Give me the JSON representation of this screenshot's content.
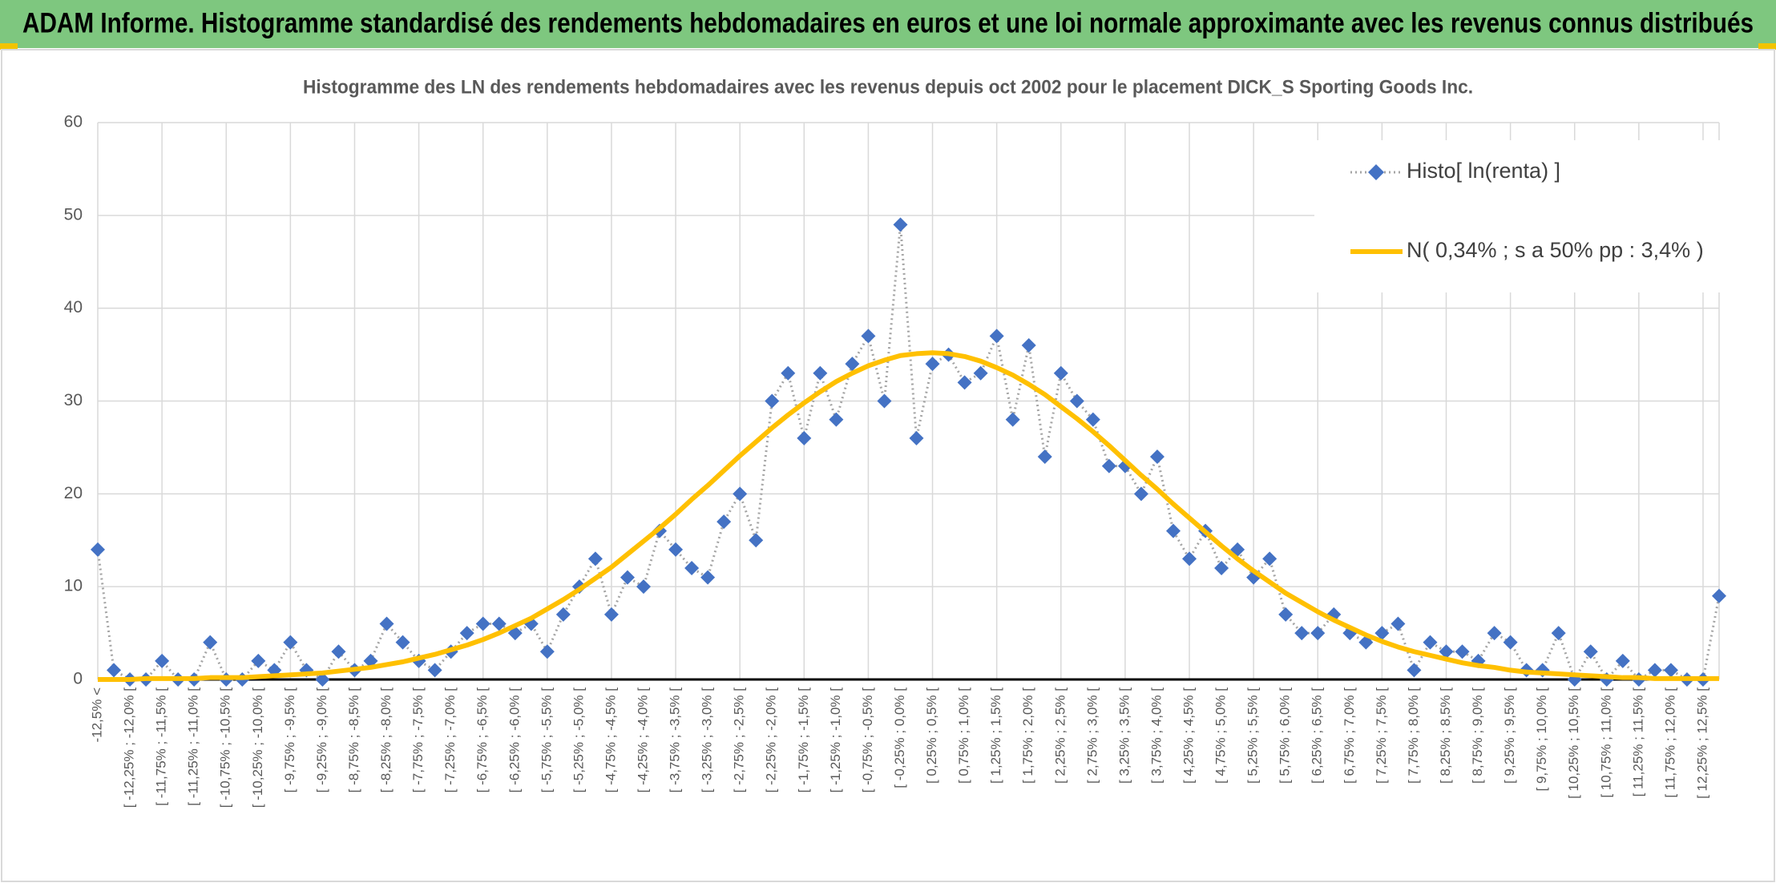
{
  "chart_data": {
    "type": "line",
    "suptitle": "ADAM Informe. Histogramme standardisé des rendements hebdomadaires en euros et une loi normale approximante avec les revenus connus distribués",
    "title": "Histogramme des LN des rendements hebdomadaires avec les revenus depuis oct 2002 pour le placement DICK_S Sporting Goods Inc.",
    "categories": [
      "-12,5% <",
      null,
      "[ -12,25% ; -12,0% [",
      null,
      "[ -11,75% ; -11,5% [",
      null,
      "[ -11,25% ; -11,0% [",
      null,
      "[ -10,75% ; -10,5% [",
      null,
      "[ -10,25% ; -10,0% [",
      null,
      "[ -9,75% ; -9,5% [",
      null,
      "[ -9,25% ; -9,0% [",
      null,
      "[ -8,75% ; -8,5% [",
      null,
      "[ -8,25% ; -8,0% [",
      null,
      "[ -7,75% ; -7,5% [",
      null,
      "[ -7,25% ; -7,0% [",
      null,
      "[ -6,75% ; -6,5% [",
      null,
      "[ -6,25% ; -6,0% [",
      null,
      "[ -5,75% ; -5,5% [",
      null,
      "[ -5,25% ; -5,0% [",
      null,
      "[ -4,75% ; -4,5% [",
      null,
      "[ -4,25% ; -4,0% [",
      null,
      "[ -3,75% ; -3,5% [",
      null,
      "[ -3,25% ; -3,0% [",
      null,
      "[ -2,75% ; -2,5% [",
      null,
      "[ -2,25% ; -2,0% [",
      null,
      "[ -1,75% ; -1,5% [",
      null,
      "[ -1,25% ; -1,0% [",
      null,
      "[ -0,75% ; -0,5% [",
      null,
      "[ -0,25% ; 0,0% [",
      null,
      "[ 0,25% ; 0,5% [",
      null,
      "[ 0,75% ; 1,0% [",
      null,
      "[ 1,25% ; 1,5% [",
      null,
      "[ 1,75% ; 2,0% [",
      null,
      "[ 2,25% ; 2,5% [",
      null,
      "[ 2,75% ; 3,0% [",
      null,
      "[ 3,25% ; 3,5% [",
      null,
      "[ 3,75% ; 4,0% [",
      null,
      "[ 4,25% ; 4,5% [",
      null,
      "[ 4,75% ; 5,0% [",
      null,
      "[ 5,25% ; 5,5% [",
      null,
      "[ 5,75% ; 6,0% [",
      null,
      "[ 6,25% ; 6,5% [",
      null,
      "[ 6,75% ; 7,0% [",
      null,
      "[ 7,25% ; 7,5% [",
      null,
      "[ 7,75% ; 8,0% [",
      null,
      "[ 8,25% ; 8,5% [",
      null,
      "[ 8,75% ; 9,0% [",
      null,
      "[ 9,25% ; 9,5% [",
      null,
      "[ 9,75% ; 10,0% [",
      null,
      "[ 10,25% ; 10,5% [",
      null,
      "[ 10,75% ; 11,0% [",
      null,
      "[ 11,25% ; 11,5% [",
      null,
      "[ 11,75% ; 12,0% [",
      null,
      "[ 12,25% ; 12,5% [",
      null
    ],
    "series": [
      {
        "name": "Histo[ ln(renta) ]",
        "color": "#4472c4",
        "line_color": "#a5a5a5",
        "line_style": "dotted",
        "marker": "diamond",
        "values": [
          14,
          1,
          0,
          0,
          2,
          0,
          0,
          4,
          0,
          0,
          2,
          1,
          4,
          1,
          0,
          3,
          1,
          2,
          6,
          4,
          2,
          1,
          3,
          5,
          6,
          6,
          5,
          6,
          3,
          7,
          10,
          13,
          7,
          11,
          10,
          16,
          14,
          12,
          11,
          17,
          20,
          15,
          30,
          33,
          26,
          33,
          28,
          34,
          37,
          30,
          49,
          26,
          34,
          35,
          32,
          33,
          37,
          28,
          36,
          24,
          33,
          30,
          28,
          23,
          23,
          20,
          24,
          16,
          13,
          16,
          12,
          14,
          11,
          13,
          7,
          5,
          5,
          7,
          5,
          4,
          5,
          6,
          1,
          4,
          3,
          3,
          2,
          5,
          4,
          1,
          1,
          5,
          0,
          3,
          0,
          2,
          0,
          1,
          1,
          0,
          0,
          9
        ]
      },
      {
        "name": "N( 0,34% ; s a 50% pp : 3,4% )",
        "color": "#ffc000",
        "line_style": "solid",
        "marker": "none",
        "values": [
          0.0,
          0.0,
          0.0,
          0.1,
          0.1,
          0.1,
          0.1,
          0.2,
          0.2,
          0.2,
          0.3,
          0.4,
          0.5,
          0.6,
          0.7,
          0.9,
          1.1,
          1.3,
          1.6,
          1.9,
          2.3,
          2.7,
          3.2,
          3.7,
          4.3,
          5.0,
          5.8,
          6.6,
          7.6,
          8.6,
          9.7,
          10.9,
          12.1,
          13.5,
          14.9,
          16.3,
          17.8,
          19.4,
          20.9,
          22.5,
          24.1,
          25.6,
          27.1,
          28.5,
          29.8,
          31.0,
          32.1,
          33.0,
          33.8,
          34.4,
          34.9,
          35.1,
          35.2,
          35.1,
          34.8,
          34.3,
          33.6,
          32.8,
          31.8,
          30.7,
          29.4,
          28.1,
          26.7,
          25.2,
          23.6,
          22.0,
          20.5,
          18.9,
          17.4,
          15.9,
          14.4,
          13.0,
          11.7,
          10.5,
          9.3,
          8.3,
          7.3,
          6.4,
          5.6,
          4.8,
          4.1,
          3.5,
          3.0,
          2.6,
          2.2,
          1.8,
          1.5,
          1.3,
          1.0,
          0.8,
          0.7,
          0.6,
          0.5,
          0.4,
          0.3,
          0.2,
          0.2,
          0.1,
          0.1,
          0.1,
          0.1,
          0.1
        ]
      }
    ],
    "ylim": [
      0,
      60
    ],
    "yticks": [
      0,
      10,
      20,
      30,
      40,
      50,
      60
    ],
    "grid": true,
    "legend_position": "upper right"
  }
}
